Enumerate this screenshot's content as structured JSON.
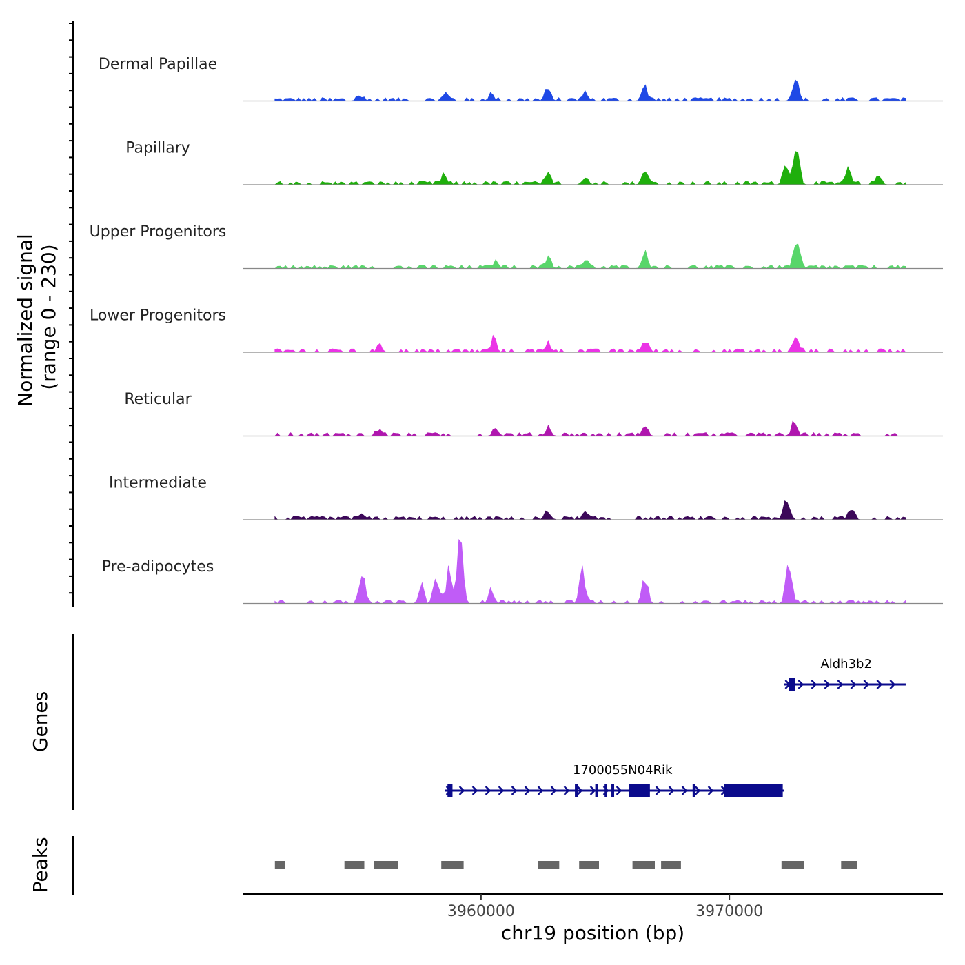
{
  "chart_data": {
    "type": "area",
    "title": "",
    "ylabel": "Normalized signal\n(range 0 - 230)",
    "xlabel": "chr19 position (bp)",
    "xlim": [
      3950400,
      3978600
    ],
    "ylim": [
      0,
      230
    ],
    "x_ticks": [
      {
        "value": 3960000,
        "label": "3960000"
      },
      {
        "value": 3970000,
        "label": "3970000"
      }
    ],
    "tracks": [
      {
        "name": "Dermal Papillae",
        "color": "#1f49e6",
        "peaks": [
          [
            3972650,
            90
          ],
          [
            3966600,
            50
          ],
          [
            3962700,
            38
          ],
          [
            3964200,
            24
          ],
          [
            3955100,
            22
          ],
          [
            3958600,
            20
          ],
          [
            3960400,
            20
          ]
        ]
      },
      {
        "name": "Papillary",
        "color": "#1faf0c",
        "peaks": [
          [
            3972700,
            150
          ],
          [
            3972300,
            80
          ],
          [
            3966600,
            55
          ],
          [
            3974800,
            48
          ],
          [
            3962700,
            30
          ],
          [
            3964200,
            30
          ],
          [
            3958500,
            30
          ],
          [
            3976000,
            30
          ]
        ]
      },
      {
        "name": "Upper Progenitors",
        "color": "#58d66a",
        "peaks": [
          [
            3972700,
            115
          ],
          [
            3966600,
            50
          ],
          [
            3962700,
            45
          ],
          [
            3964200,
            30
          ],
          [
            3960600,
            25
          ]
        ]
      },
      {
        "name": "Lower Progenitors",
        "color": "#eb33e6",
        "peaks": [
          [
            3972700,
            50
          ],
          [
            3960500,
            42
          ],
          [
            3966600,
            38
          ],
          [
            3962700,
            35
          ],
          [
            3955900,
            18
          ]
        ]
      },
      {
        "name": "Reticular",
        "color": "#b016af",
        "peaks": [
          [
            3972600,
            45
          ],
          [
            3955900,
            25
          ],
          [
            3962700,
            25
          ],
          [
            3966600,
            25
          ],
          [
            3960600,
            20
          ]
        ]
      },
      {
        "name": "Intermediate",
        "color": "#3c0859",
        "peaks": [
          [
            3972300,
            60
          ],
          [
            3974900,
            48
          ],
          [
            3962700,
            25
          ],
          [
            3955100,
            20
          ],
          [
            3964200,
            20
          ]
        ]
      },
      {
        "name": "Pre-adipocytes",
        "color": "#c05cf7",
        "peaks": [
          [
            3959150,
            225
          ],
          [
            3972400,
            175
          ],
          [
            3955200,
            120
          ],
          [
            3958700,
            110
          ],
          [
            3964100,
            115
          ],
          [
            3966600,
            95
          ],
          [
            3958200,
            90
          ],
          [
            3957600,
            55
          ],
          [
            3960400,
            50
          ]
        ]
      }
    ],
    "genes": [
      {
        "name": "Aldh3b2",
        "start": 3972200,
        "end": 3977100,
        "strand": "+",
        "exons": [
          [
            3972400,
            3972650
          ]
        ]
      },
      {
        "name": "1700055N04Rik",
        "start": 3958550,
        "end": 3972200,
        "strand": "+",
        "exons": [
          [
            3958650,
            3958850
          ],
          [
            3963780,
            3963870
          ],
          [
            3964600,
            3964680
          ],
          [
            3964950,
            3965030
          ],
          [
            3965250,
            3965330
          ],
          [
            3965950,
            3966800
          ],
          [
            3968520,
            3968580
          ],
          [
            3969800,
            3972150
          ]
        ]
      }
    ],
    "peak_regions": [
      [
        3951700,
        3952100
      ],
      [
        3954500,
        3955300
      ],
      [
        3955700,
        3956650
      ],
      [
        3958400,
        3959300
      ],
      [
        3962300,
        3963150
      ],
      [
        3963950,
        3964750
      ],
      [
        3966100,
        3967000
      ],
      [
        3967250,
        3968050
      ],
      [
        3972100,
        3973000
      ],
      [
        3974500,
        3975150
      ]
    ],
    "panel_labels": {
      "genes": "Genes",
      "peaks": "Peaks"
    }
  }
}
